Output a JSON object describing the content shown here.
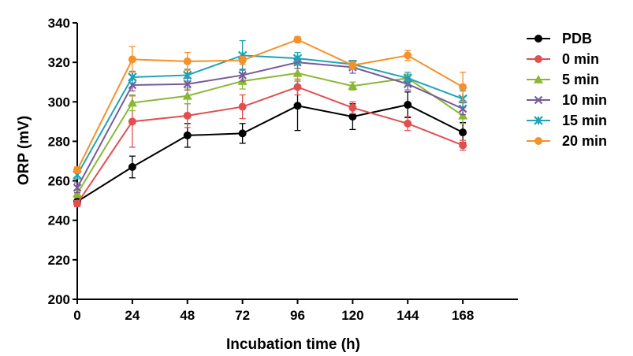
{
  "chart_data": {
    "type": "line",
    "title": "",
    "xlabel": "Incubation time (h)",
    "ylabel": "ORP (mV)",
    "x": [
      0,
      24,
      48,
      72,
      96,
      120,
      144,
      168
    ],
    "x_ticks": [
      "0",
      "24",
      "48",
      "72",
      "96",
      "120",
      "144",
      "168"
    ],
    "xlim": [
      0,
      192
    ],
    "ylim": [
      200,
      340
    ],
    "y_ticks": [
      "200",
      "220",
      "240",
      "260",
      "280",
      "300",
      "320",
      "340"
    ],
    "grid": false,
    "legend_position": "right",
    "series": [
      {
        "name": "PDB",
        "color": "#000000",
        "marker": "circle",
        "values": [
          249.5,
          267,
          283,
          284,
          298,
          292.5,
          298.5,
          284.5
        ],
        "errors": [
          2,
          5.5,
          6,
          5,
          12.5,
          6.5,
          6.5,
          5
        ]
      },
      {
        "name": "0 min",
        "color": "#e05050",
        "marker": "circle",
        "values": [
          248.5,
          290,
          293,
          297.5,
          307.5,
          297,
          289,
          278
        ],
        "errors": [
          1.5,
          13,
          6,
          6,
          4,
          3,
          3.5,
          2.5
        ]
      },
      {
        "name": "5 min",
        "color": "#8ab832",
        "marker": "triangle",
        "values": [
          253.5,
          299.5,
          303,
          310.5,
          314.5,
          308,
          312,
          293
        ],
        "errors": [
          2,
          4,
          4,
          4,
          4,
          2,
          2,
          4
        ]
      },
      {
        "name": "10 min",
        "color": "#7a5a9a",
        "marker": "x",
        "values": [
          256.5,
          308.5,
          309,
          313.5,
          320,
          317.5,
          309,
          296.5
        ],
        "errors": [
          2.5,
          3,
          3,
          3,
          3,
          3,
          3,
          3
        ]
      },
      {
        "name": "15 min",
        "color": "#1fa3b8",
        "marker": "star",
        "values": [
          263,
          312.5,
          313.5,
          323.5,
          322,
          319,
          312,
          301.5
        ],
        "errors": [
          2,
          3,
          3,
          7.5,
          3,
          2,
          3,
          4
        ]
      },
      {
        "name": "20 min",
        "color": "#f5912a",
        "marker": "circle",
        "values": [
          265.5,
          321.5,
          320.5,
          321,
          331.5,
          318.5,
          323.5,
          307.5
        ],
        "errors": [
          1.5,
          6.5,
          4.5,
          2,
          1.5,
          2,
          2.5,
          7.5
        ]
      }
    ]
  }
}
